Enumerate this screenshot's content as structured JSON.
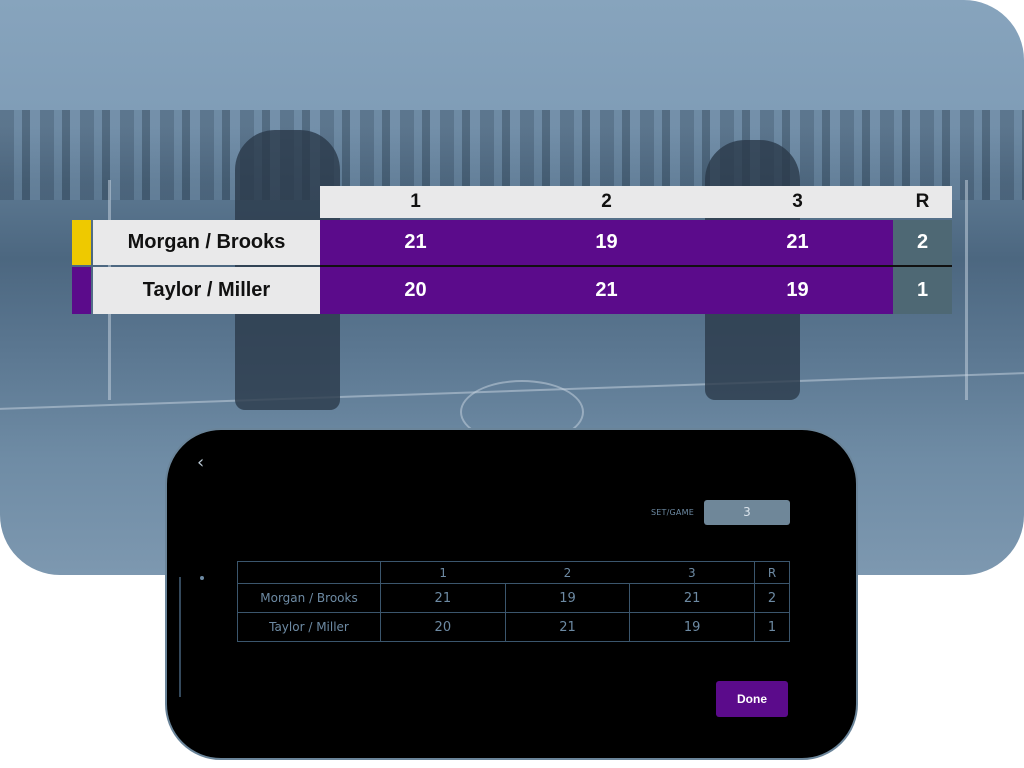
{
  "colors": {
    "accent_purple": "#5b0b8b",
    "serve_indicator": "#eec900",
    "result_cell": "#4e6874",
    "phone_text": "#6d8aa3"
  },
  "scoreboard": {
    "headers": [
      "1",
      "2",
      "3",
      "R"
    ],
    "rows": [
      {
        "team": "Morgan / Brooks",
        "scores": [
          "21",
          "19",
          "21"
        ],
        "result": "2",
        "serving": true
      },
      {
        "team": "Taylor / Miller",
        "scores": [
          "20",
          "21",
          "19"
        ],
        "result": "1",
        "serving": false
      }
    ]
  },
  "phone": {
    "back_icon": "chevron-left-icon",
    "back_glyph": "‹",
    "set_game_label": "SET/GAME",
    "set_game_value": "3",
    "table": {
      "headers": [
        "",
        "1",
        "2",
        "3",
        "R"
      ],
      "rows": [
        {
          "team": "Morgan / Brooks",
          "scores": [
            "21",
            "19",
            "21"
          ],
          "result": "2"
        },
        {
          "team": "Taylor / Miller",
          "scores": [
            "20",
            "21",
            "19"
          ],
          "result": "1"
        }
      ]
    },
    "done_label": "Done"
  }
}
